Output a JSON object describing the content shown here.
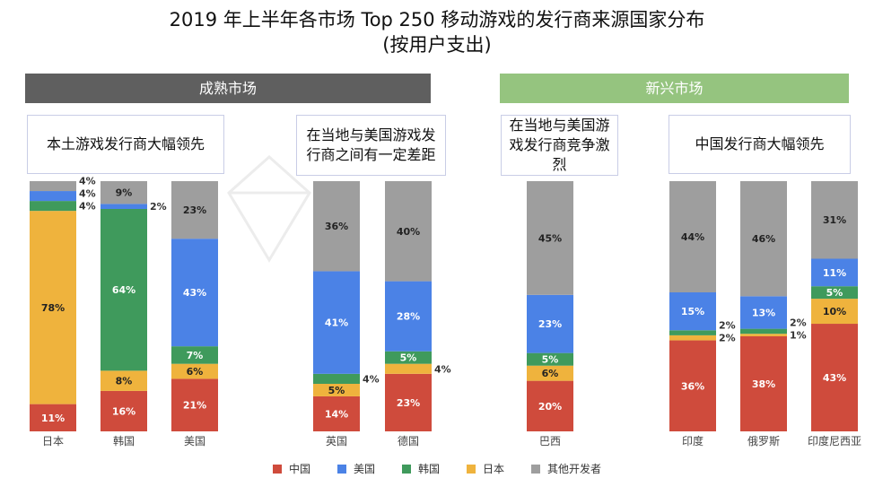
{
  "chart_data": {
    "type": "bar",
    "stacked": true,
    "title": "2019 年上半年各市场 Top 250 移动游戏的发行商来源国家分布",
    "subtitle": "(按用户支出)",
    "watermark": "APP ANNIE",
    "groups": [
      {
        "label": "成熟市场",
        "color": "#5f5f5f",
        "categories": [
          "日本",
          "韩国",
          "美国",
          "英国",
          "德国"
        ]
      },
      {
        "label": "新兴市场",
        "color": "#95c47f",
        "categories": [
          "巴西",
          "印度",
          "俄罗斯",
          "印度尼西亚"
        ]
      }
    ],
    "annotations": [
      "本土游戏发行商大幅领先",
      "在当地与美国游戏发行商之间有一定差距",
      "在当地与美国游戏发行商竞争激烈",
      "中国发行商大幅领先"
    ],
    "categories": [
      "日本",
      "韩国",
      "美国",
      "英国",
      "德国",
      "巴西",
      "印度",
      "俄罗斯",
      "印度尼西亚"
    ],
    "series": [
      {
        "name": "中国",
        "color": "#cf4b3c",
        "values": [
          11,
          16,
          21,
          14,
          23,
          20,
          36,
          38,
          43
        ]
      },
      {
        "name": "日本",
        "color": "#efb33d",
        "values": [
          78,
          8,
          6,
          5,
          4,
          6,
          2,
          1,
          10
        ]
      },
      {
        "name": "韩国",
        "color": "#3f9a5c",
        "values": [
          4,
          64,
          7,
          4,
          5,
          5,
          2,
          2,
          5
        ]
      },
      {
        "name": "美国",
        "color": "#4b82e6",
        "values": [
          4,
          2,
          43,
          41,
          28,
          23,
          15,
          13,
          11
        ]
      },
      {
        "name": "其他开发者",
        "color": "#9e9e9e",
        "values": [
          4,
          9,
          23,
          36,
          40,
          45,
          44,
          46,
          31
        ]
      }
    ],
    "legend_order": [
      "中国",
      "美国",
      "韩国",
      "日本",
      "其他开发者"
    ],
    "legend_position": "bottom",
    "unit": "%"
  }
}
